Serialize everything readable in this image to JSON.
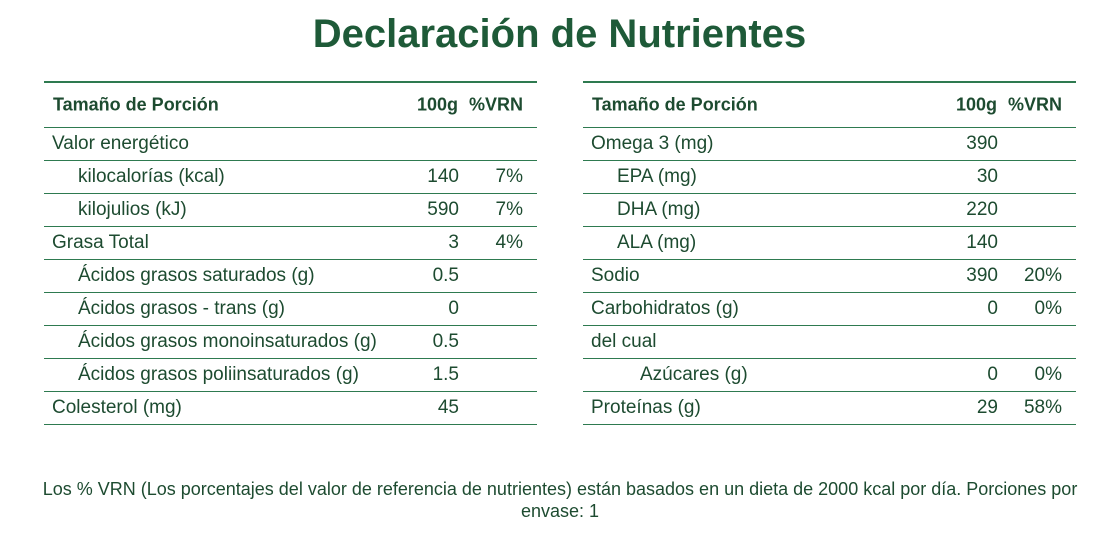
{
  "title": "Declaración de Nutrientes",
  "tables": [
    {
      "header": {
        "label": "Tamaño de Porción",
        "amount": "100g",
        "vrn": "%VRN"
      },
      "rows": [
        {
          "label": "Valor energético"
        },
        {
          "label": "kilocalorías (kcal)",
          "amount": 140,
          "vrn": "7%"
        },
        {
          "label": "kilojulios (kJ)",
          "amount": 590,
          "vrn": "7%"
        },
        {
          "label": "Grasa Total",
          "amount": 3,
          "vrn": "4%"
        },
        {
          "label": "Ácidos grasos saturados (g)",
          "amount": 0.5
        },
        {
          "label": "Ácidos grasos - trans (g)",
          "amount": 0
        },
        {
          "label": "Ácidos grasos monoinsaturados (g)",
          "amount": 0.5
        },
        {
          "label": "Ácidos grasos poliinsaturados (g)",
          "amount": 1.5
        },
        {
          "label": "Colesterol (mg)",
          "amount": 45
        }
      ]
    },
    {
      "header": {
        "label": "Tamaño de Porción",
        "amount": "100g",
        "vrn": "%VRN"
      },
      "rows": [
        {
          "label": "Omega 3 (mg)",
          "amount": 390
        },
        {
          "label": "EPA (mg)",
          "amount": 30
        },
        {
          "label": "DHA (mg)",
          "amount": 220
        },
        {
          "label": "ALA (mg)",
          "amount": 140
        },
        {
          "label": "Sodio",
          "amount": 390,
          "vrn": "20%"
        },
        {
          "label": "Carbohidratos (g)",
          "amount": 0,
          "vrn": "0%"
        },
        {
          "label": "del cual"
        },
        {
          "label": "Azúcares (g)",
          "amount": 0,
          "vrn": "0%"
        },
        {
          "label": "Proteínas (g)",
          "amount": 29,
          "vrn": "58%"
        }
      ]
    }
  ],
  "footnote": "Los % VRN (Los porcentajes del valor de referencia de nutrientes) están basados en un dieta de 2000 kcal por día. Porciones por envase: 1"
}
